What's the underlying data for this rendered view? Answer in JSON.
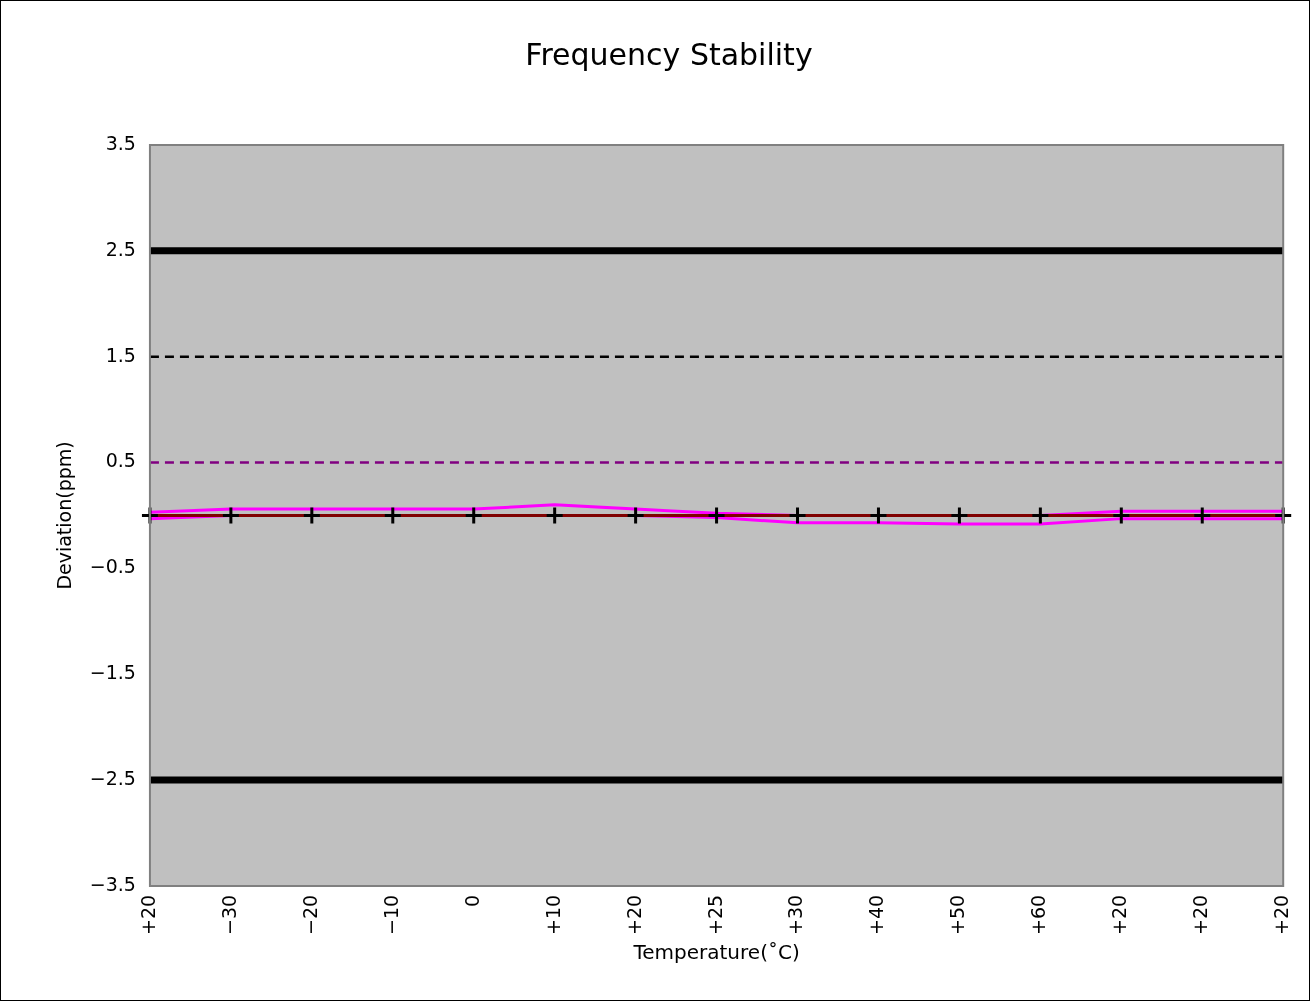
{
  "chart_data": {
    "type": "line",
    "title": "Frequency Stability",
    "xlabel": "Temperature(˚C)",
    "ylabel": "Deviation(ppm)",
    "categories": [
      "+20",
      "−30",
      "−20",
      "−10",
      "0",
      "+10",
      "+20",
      "+25",
      "+30",
      "+40",
      "+50",
      "+60",
      "+20",
      "+20",
      "+20"
    ],
    "series": [
      {
        "color": "#ff00ff",
        "marker": "none",
        "values": [
          0.03,
          0.06,
          0.06,
          0.06,
          0.06,
          0.1,
          0.06,
          0.02,
          0,
          0,
          0,
          0,
          0.04,
          0.04,
          0.04
        ]
      },
      {
        "color": "#ff00ff",
        "marker": "none",
        "values": [
          -0.03,
          0,
          0,
          0,
          0,
          0,
          0,
          -0.02,
          -0.07,
          -0.07,
          -0.08,
          -0.08,
          -0.03,
          -0.03,
          -0.03
        ]
      },
      {
        "color": "#800000",
        "marker": "none",
        "values": [
          0,
          0,
          0,
          0,
          0,
          0,
          0,
          0,
          0,
          0,
          0,
          0,
          0,
          0,
          0
        ]
      },
      {
        "type": "scatter",
        "color": "#000000",
        "marker": "cross",
        "values": [
          0,
          0,
          0,
          0,
          0,
          0,
          0,
          0,
          0,
          0,
          0,
          0,
          0,
          0,
          0
        ]
      }
    ],
    "ylim": [
      -3.5,
      3.5
    ],
    "yticks": [
      {
        "value": -3.5,
        "label": "−3.5"
      },
      {
        "value": -2.5,
        "label": "−2.5"
      },
      {
        "value": -1.5,
        "label": "−1.5"
      },
      {
        "value": -0.5,
        "label": "−0.5"
      },
      0.5,
      1.5,
      2.5,
      3.5
    ],
    "ref_lines": [
      {
        "axis": "y",
        "value": 2.5,
        "color": "#000000",
        "line_style": "solid"
      },
      {
        "axis": "y",
        "value": -2.5,
        "color": "#000000",
        "line_style": "solid"
      },
      {
        "axis": "y",
        "value": 1.5,
        "color": "#000000",
        "line_style": "dashed"
      },
      {
        "axis": "y",
        "value": 0.5,
        "color": "#800080",
        "line_style": "dashed"
      }
    ],
    "grid": false,
    "legend": false
  }
}
